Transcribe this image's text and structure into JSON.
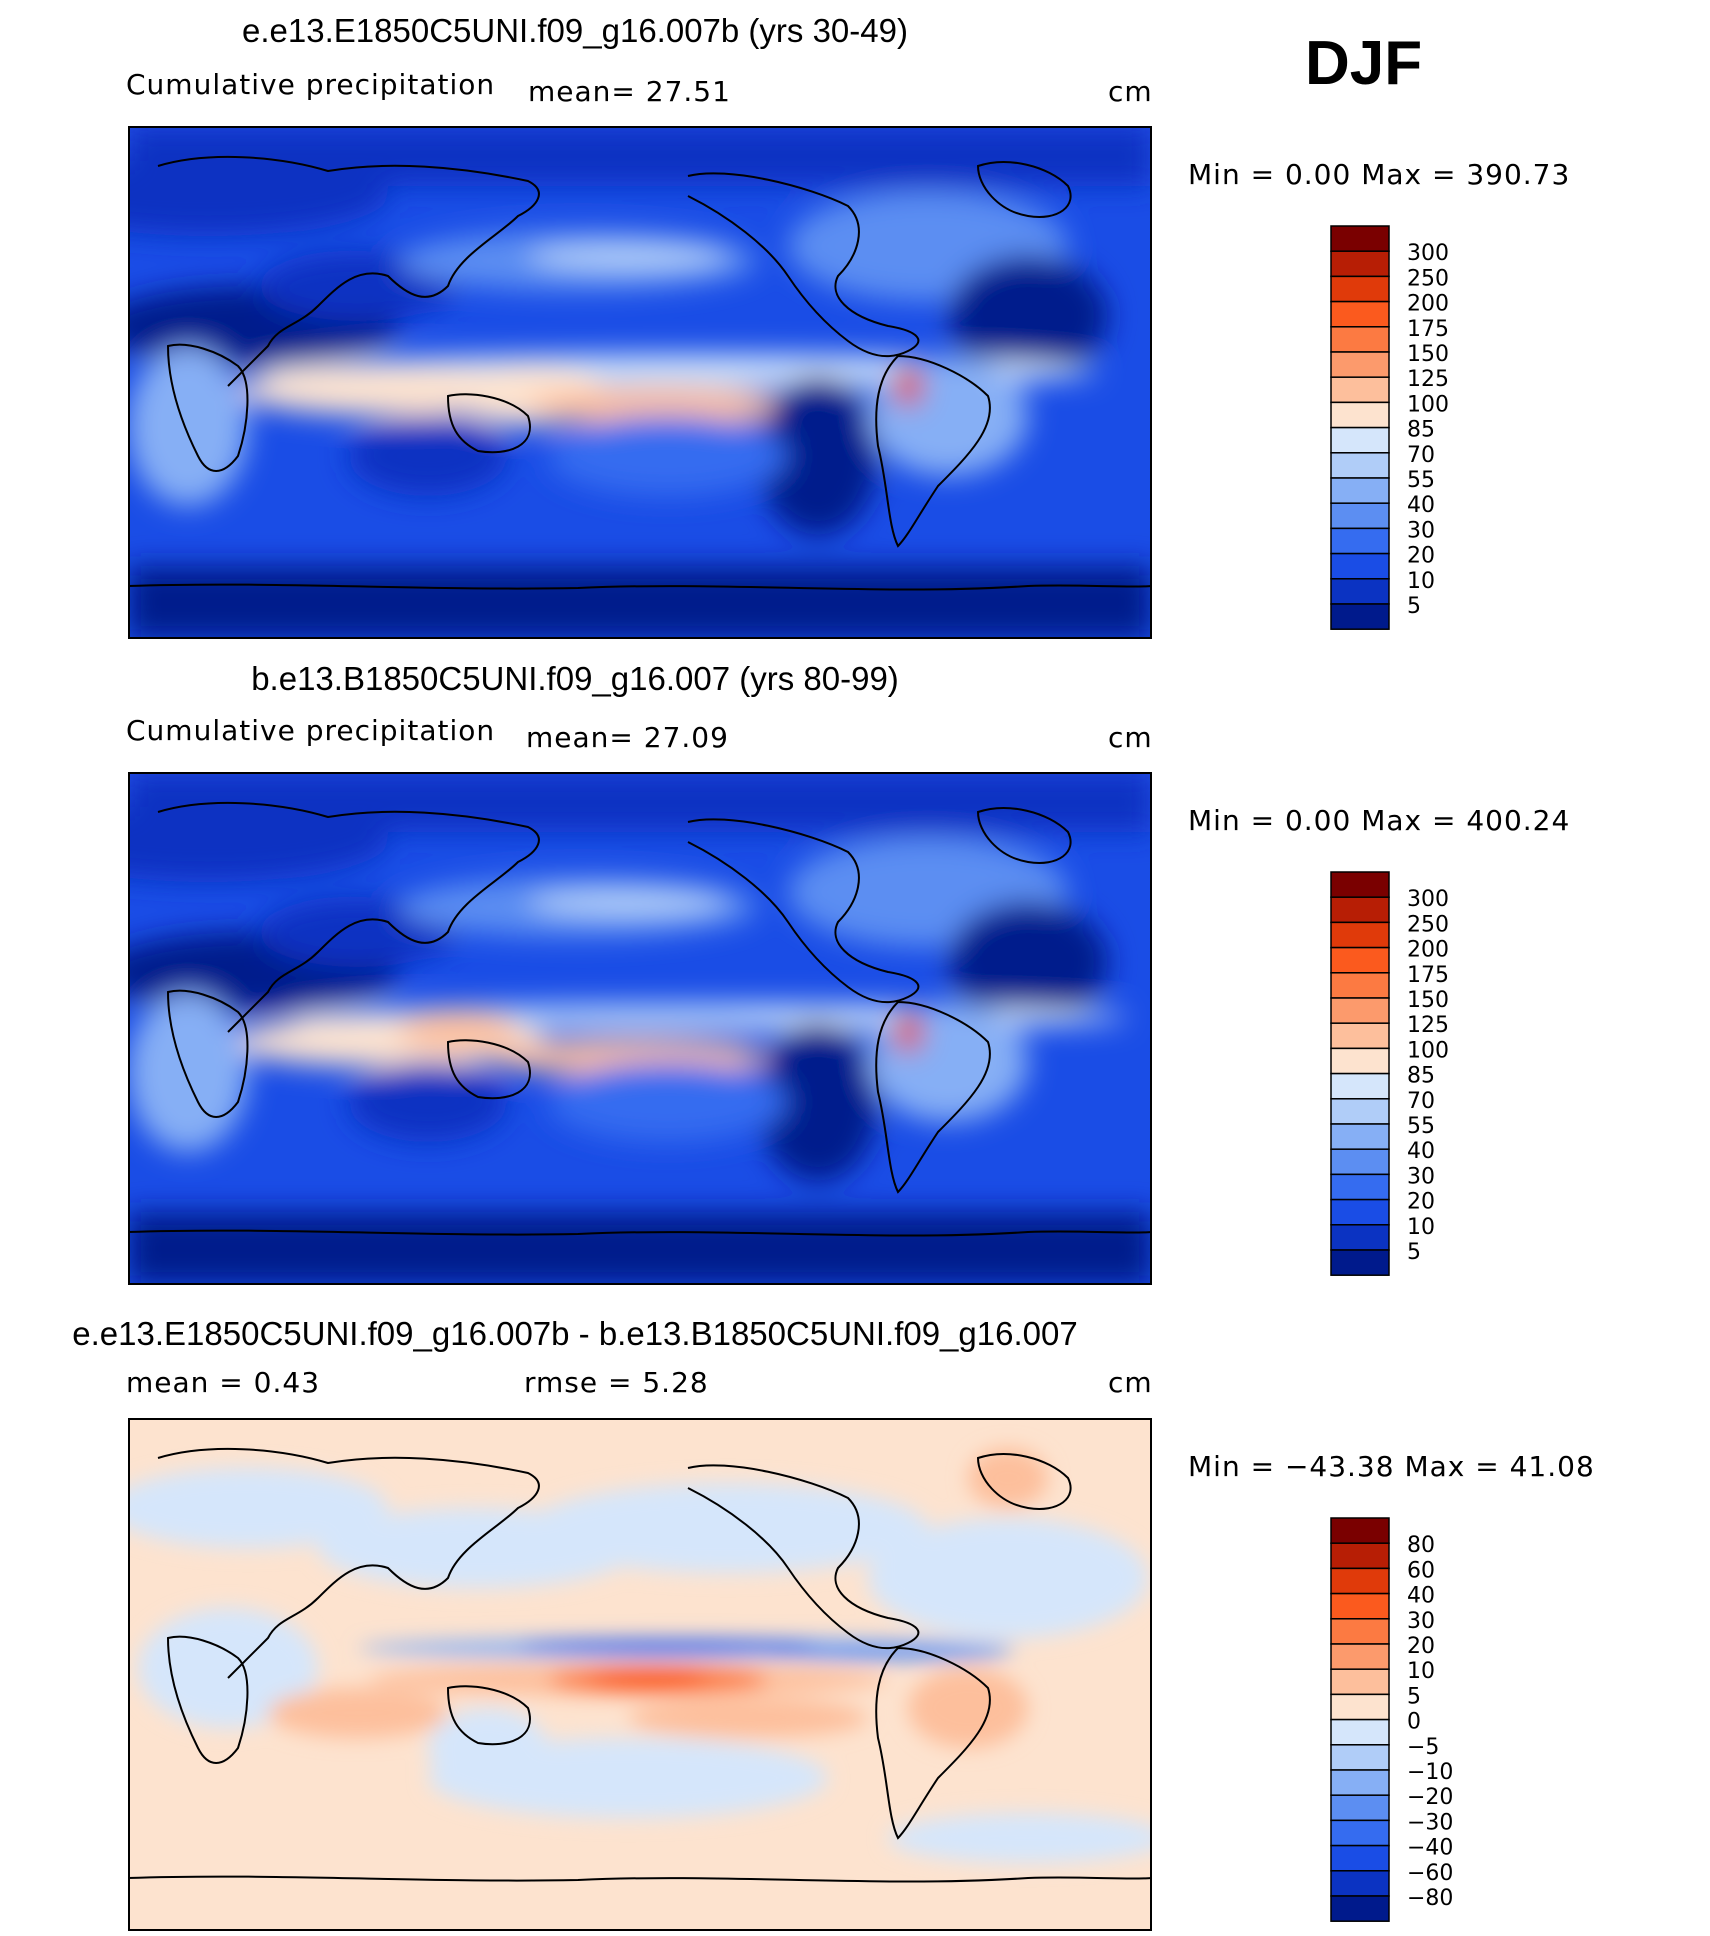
{
  "season": "DJF",
  "panels": [
    {
      "title": "e.e13.E1850C5UNI.f09_g16.007b (yrs 30-49)",
      "left_label": "Cumulative  precipitation",
      "mid_label": "mean=   27.51",
      "units": "cm",
      "stats": "Min  =      0.00  Max  =  390.73"
    },
    {
      "title": "b.e13.B1850C5UNI.f09_g16.007 (yrs 80-99)",
      "left_label": "Cumulative  precipitation",
      "mid_label": "mean=   27.09",
      "units": "cm",
      "stats": "Min  =      0.00  Max  =  400.24"
    },
    {
      "title": "e.e13.E1850C5UNI.f09_g16.007b - b.e13.B1850C5UNI.f09_g16.007",
      "left_label": "mean  =     0.43",
      "mid_label": "rmse  =     5.28",
      "units": "cm",
      "stats": "Min  = −43.38  Max  =   41.08"
    }
  ],
  "chart_data": [
    {
      "type": "heatmap",
      "title": "e.e13.E1850C5UNI.f09_g16.007b (yrs 30-49)",
      "subtitle": "Cumulative precipitation",
      "mean": 27.51,
      "units": "cm",
      "min": 0.0,
      "max": 390.73,
      "colorbar_levels": [
        "300",
        "250",
        "200",
        "175",
        "150",
        "125",
        "100",
        "85",
        "70",
        "55",
        "40",
        "30",
        "20",
        "10",
        "5"
      ],
      "colorbar_colors": [
        "#7a0000",
        "#b71e05",
        "#e03a0a",
        "#fb5a1e",
        "#fc7a42",
        "#fc9a6c",
        "#fdbf9c",
        "#fde3cf",
        "#d5e6fb",
        "#b0cdf8",
        "#86aff5",
        "#5c8ef2",
        "#356cf0",
        "#1a4de6",
        "#0b33c2",
        "#001a8c"
      ]
    },
    {
      "type": "heatmap",
      "title": "b.e13.B1850C5UNI.f09_g16.007 (yrs 80-99)",
      "subtitle": "Cumulative precipitation",
      "mean": 27.09,
      "units": "cm",
      "min": 0.0,
      "max": 400.24,
      "colorbar_levels": [
        "300",
        "250",
        "200",
        "175",
        "150",
        "125",
        "100",
        "85",
        "70",
        "55",
        "40",
        "30",
        "20",
        "10",
        "5"
      ],
      "colorbar_colors": [
        "#7a0000",
        "#b71e05",
        "#e03a0a",
        "#fb5a1e",
        "#fc7a42",
        "#fc9a6c",
        "#fdbf9c",
        "#fde3cf",
        "#d5e6fb",
        "#b0cdf8",
        "#86aff5",
        "#5c8ef2",
        "#356cf0",
        "#1a4de6",
        "#0b33c2",
        "#001a8c"
      ]
    },
    {
      "type": "heatmap",
      "title": "e.e13.E1850C5UNI.f09_g16.007b - b.e13.B1850C5UNI.f09_g16.007",
      "mean": 0.43,
      "rmse": 5.28,
      "units": "cm",
      "min": -43.38,
      "max": 41.08,
      "colorbar_levels": [
        "80",
        "60",
        "40",
        "30",
        "20",
        "10",
        "5",
        "0",
        "−5",
        "−10",
        "−20",
        "−30",
        "−40",
        "−60",
        "−80"
      ],
      "colorbar_colors": [
        "#7a0000",
        "#b71e05",
        "#e03a0a",
        "#fb5a1e",
        "#fc7a42",
        "#fc9a6c",
        "#fdbf9c",
        "#fde3cf",
        "#d5e6fb",
        "#b0cdf8",
        "#86aff5",
        "#5c8ef2",
        "#356cf0",
        "#1a4de6",
        "#0b33c2",
        "#001a8c"
      ]
    }
  ]
}
